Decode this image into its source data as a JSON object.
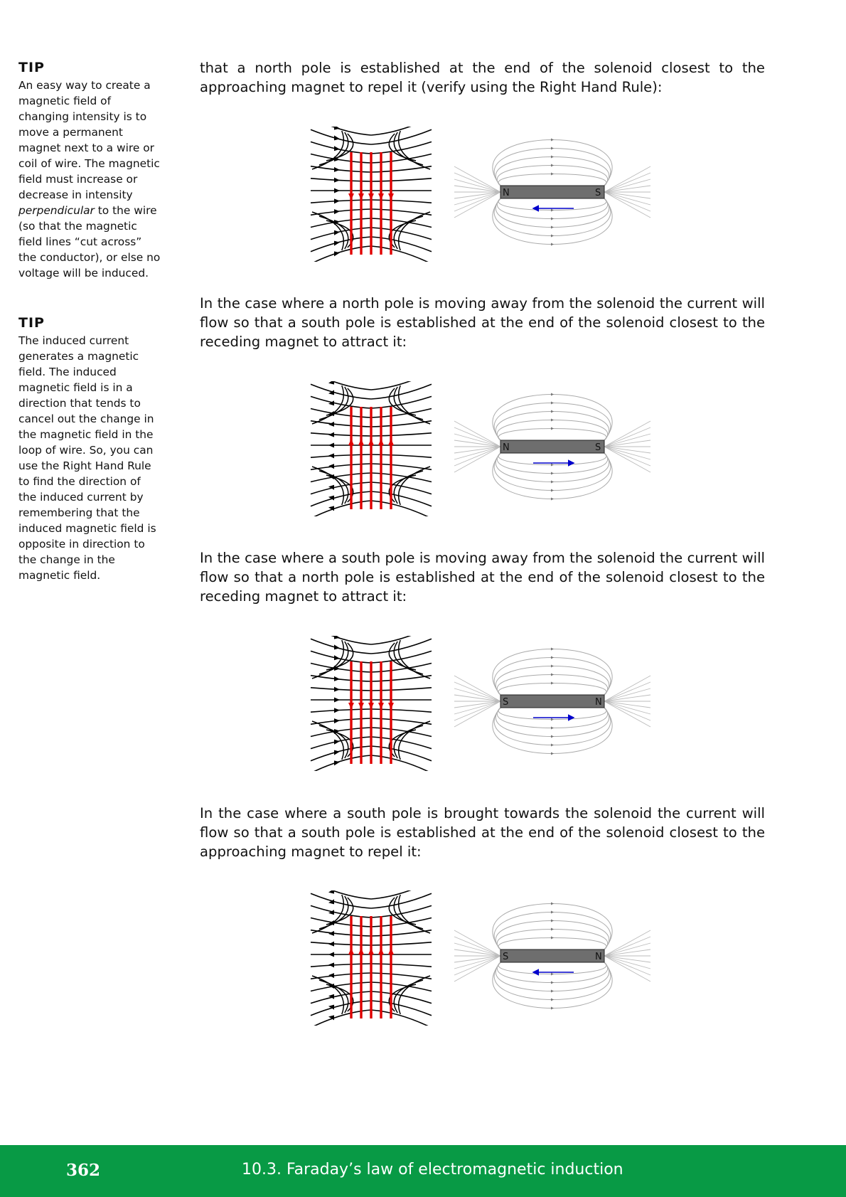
{
  "tips": [
    {
      "heading": "TIP",
      "body_before": "An easy way to create a magnetic field of changing intensity is to move a permanent magnet next to a wire or coil of wire. The magnetic field must increase or decrease in intensity ",
      "body_italic": "perpendicular",
      "body_after": " to the wire (so that the magnetic field lines “cut across” the conductor), or else no voltage will be induced."
    },
    {
      "heading": "TIP",
      "body": "The induced current generates a magnetic field. The induced magnetic field is in a direction that tends to cancel out the change in the magnetic field in the loop of wire. So, you can use the Right Hand Rule to find the direction of the induced current by remembering that the induced magnetic field is opposite in direction to the change in the magnetic field."
    }
  ],
  "paragraphs": [
    "that a north pole is established at the end of the solenoid closest to the approaching magnet to repel it (verify using the Right Hand Rule):",
    "In the case where a north pole is moving away from the solenoid the current will flow so that a south pole is established at the end of the solenoid closest to the receding magnet to attract it:",
    "In the case where a south pole is moving away from the solenoid the current will flow so that a north pole is established at the end of the solenoid closest to the receding magnet to attract it:",
    "In the case where a south pole is brought towards the solenoid the current will flow so that a south pole is established at the end of the solenoid closest to the approaching magnet to repel it:"
  ],
  "figures": [
    {
      "left_pole": "N",
      "right_pole": "S",
      "current_direction": "down",
      "motion": "left"
    },
    {
      "left_pole": "N",
      "right_pole": "S",
      "current_direction": "up",
      "motion": "right"
    },
    {
      "left_pole": "S",
      "right_pole": "N",
      "current_direction": "down",
      "motion": "right"
    },
    {
      "left_pole": "S",
      "right_pole": "N",
      "current_direction": "up",
      "motion": "left"
    }
  ],
  "colors": {
    "footer": "#089a45",
    "current": "#e00000",
    "motion_arrow": "#0000cc",
    "magnet": "#6e6e6e"
  },
  "footer": {
    "page_number": "362",
    "chapter": "10.3.   Faraday’s law of electromagnetic induction"
  }
}
